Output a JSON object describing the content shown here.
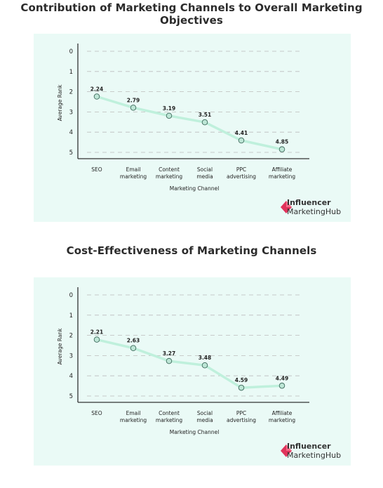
{
  "chart_data": [
    {
      "type": "line",
      "title": "Contribution of Marketing Channels to Overall Marketing Objectives",
      "xlabel": "Marketing Channel",
      "ylabel": "Average Rank",
      "categories": [
        [
          "SEO"
        ],
        [
          "Email",
          "marketing"
        ],
        [
          "Content",
          "marketing"
        ],
        [
          "Social",
          "media"
        ],
        [
          "PPC",
          "advertising"
        ],
        [
          "Affiliate",
          "marketing"
        ]
      ],
      "values": [
        2.24,
        2.79,
        3.19,
        3.51,
        4.41,
        4.85
      ],
      "yticks": [
        0,
        1,
        2,
        3,
        4,
        5
      ],
      "ylim": [
        0,
        5
      ],
      "y_inverted": true,
      "grid": "horizontal dashed",
      "line_color": "#bff0dc",
      "marker_color": "#bde6d6"
    },
    {
      "type": "line",
      "title": "Cost-Effectiveness of Marketing Channels",
      "xlabel": "Marketing Channel",
      "ylabel": "Average Rank",
      "categories": [
        [
          "SEO"
        ],
        [
          "Email",
          "marketing"
        ],
        [
          "Content",
          "marketing"
        ],
        [
          "Social",
          "media"
        ],
        [
          "PPC",
          "advertising"
        ],
        [
          "Affiliate",
          "marketing"
        ]
      ],
      "values": [
        2.21,
        2.63,
        3.27,
        3.48,
        4.59,
        4.49
      ],
      "yticks": [
        0,
        1,
        2,
        3,
        4,
        5
      ],
      "ylim": [
        0,
        5
      ],
      "y_inverted": true,
      "grid": "horizontal dashed",
      "line_color": "#bff0dc",
      "marker_color": "#bde6d6"
    }
  ],
  "logo": {
    "line1": "Influencer",
    "line2": "MarketingHub",
    "accent": "#e0335b"
  },
  "colors": {
    "panel": "#eafaf6",
    "axis": "#333333",
    "grid": "#bcbcbc"
  }
}
